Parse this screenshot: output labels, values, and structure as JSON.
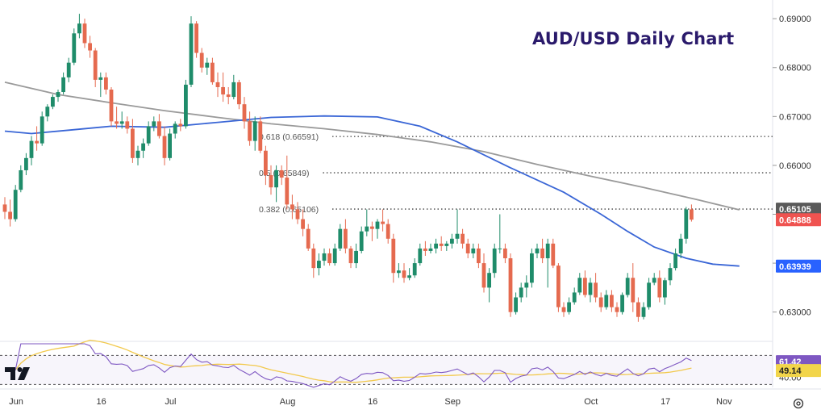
{
  "chart_data": {
    "type": "candlestick",
    "title": "AUD/USD Daily Chart",
    "price_ticks": [
      "0.69000",
      "0.68000",
      "0.67000",
      "0.66000",
      "0.65000",
      "0.64000",
      "0.63000"
    ],
    "date_ticks": [
      "Jun",
      "16",
      "Jul",
      "Aug",
      "16",
      "Sep",
      "Oct",
      "17",
      "Nov"
    ],
    "price_range": [
      0.6245,
      0.6925
    ],
    "fib_levels": [
      {
        "label": "0.618 (0.66591)",
        "value": 0.66591
      },
      {
        "label": "0.5 (0.65849)",
        "value": 0.65849
      },
      {
        "label": "0.382 (0.65106)",
        "value": 0.65106
      }
    ],
    "price_badges": [
      {
        "text": "0.65105",
        "value": 0.65105,
        "color": "#5a5a5a"
      },
      {
        "text": "0.64888",
        "value": 0.64888,
        "color": "#ef5350"
      },
      {
        "text": "0.63939",
        "value": 0.63939,
        "color": "#2962ff"
      }
    ],
    "ma_fast_color": "#3a66d6",
    "ma_slow_color": "#9a9a9a",
    "up_color": "#1f8c6a",
    "down_color": "#e56a4f",
    "ma_fast_anchors": [
      [
        0,
        0.667
      ],
      [
        5,
        0.6665
      ],
      [
        12,
        0.6672
      ],
      [
        20,
        0.668
      ],
      [
        30,
        0.6678
      ],
      [
        40,
        0.6688
      ],
      [
        50,
        0.6698
      ],
      [
        60,
        0.6701
      ],
      [
        70,
        0.6699
      ],
      [
        78,
        0.668
      ],
      [
        85,
        0.6648
      ],
      [
        95,
        0.6595
      ],
      [
        105,
        0.6545
      ],
      [
        112,
        0.65
      ],
      [
        117,
        0.6465
      ],
      [
        122,
        0.6433
      ],
      [
        128,
        0.641
      ],
      [
        133,
        0.6398
      ],
      [
        138,
        0.6394
      ]
    ],
    "ma_slow_anchors": [
      [
        0,
        0.677
      ],
      [
        10,
        0.6745
      ],
      [
        20,
        0.6728
      ],
      [
        30,
        0.6712
      ],
      [
        40,
        0.6698
      ],
      [
        50,
        0.6685
      ],
      [
        60,
        0.6675
      ],
      [
        70,
        0.6663
      ],
      [
        80,
        0.6648
      ],
      [
        90,
        0.6628
      ],
      [
        100,
        0.6602
      ],
      [
        110,
        0.6578
      ],
      [
        120,
        0.6555
      ],
      [
        130,
        0.653
      ],
      [
        138,
        0.6509
      ]
    ],
    "ohlc": [
      [
        0.652,
        0.6535,
        0.649,
        0.6505
      ],
      [
        0.6505,
        0.653,
        0.6475,
        0.649
      ],
      [
        0.649,
        0.656,
        0.6485,
        0.655
      ],
      [
        0.655,
        0.66,
        0.6545,
        0.659
      ],
      [
        0.659,
        0.6625,
        0.658,
        0.6615
      ],
      [
        0.6615,
        0.666,
        0.66,
        0.665
      ],
      [
        0.665,
        0.668,
        0.663,
        0.6645
      ],
      [
        0.6645,
        0.671,
        0.664,
        0.67
      ],
      [
        0.67,
        0.6725,
        0.669,
        0.672
      ],
      [
        0.672,
        0.6745,
        0.6715,
        0.674
      ],
      [
        0.674,
        0.6755,
        0.673,
        0.675
      ],
      [
        0.675,
        0.679,
        0.6745,
        0.678
      ],
      [
        0.678,
        0.682,
        0.677,
        0.681
      ],
      [
        0.681,
        0.688,
        0.6805,
        0.687
      ],
      [
        0.687,
        0.691,
        0.686,
        0.689
      ],
      [
        0.689,
        0.69,
        0.684,
        0.685
      ],
      [
        0.685,
        0.6865,
        0.682,
        0.6835
      ],
      [
        0.6835,
        0.684,
        0.676,
        0.6775
      ],
      [
        0.6775,
        0.679,
        0.674,
        0.678
      ],
      [
        0.678,
        0.679,
        0.6745,
        0.6755
      ],
      [
        0.6755,
        0.676,
        0.668,
        0.669
      ],
      [
        0.669,
        0.672,
        0.6675,
        0.6685
      ],
      [
        0.6685,
        0.671,
        0.6675,
        0.669
      ],
      [
        0.669,
        0.67,
        0.6665,
        0.6675
      ],
      [
        0.6675,
        0.6695,
        0.6605,
        0.6615
      ],
      [
        0.6615,
        0.664,
        0.66,
        0.663
      ],
      [
        0.663,
        0.6655,
        0.6615,
        0.6645
      ],
      [
        0.6645,
        0.669,
        0.664,
        0.668
      ],
      [
        0.668,
        0.67,
        0.667,
        0.669
      ],
      [
        0.669,
        0.6705,
        0.6655,
        0.666
      ],
      [
        0.666,
        0.668,
        0.66,
        0.6615
      ],
      [
        0.6615,
        0.6675,
        0.661,
        0.6665
      ],
      [
        0.6665,
        0.669,
        0.6655,
        0.6685
      ],
      [
        0.6685,
        0.6695,
        0.667,
        0.668
      ],
      [
        0.668,
        0.6775,
        0.6675,
        0.6765
      ],
      [
        0.6765,
        0.6905,
        0.676,
        0.689
      ],
      [
        0.689,
        0.6895,
        0.682,
        0.683
      ],
      [
        0.683,
        0.684,
        0.679,
        0.68
      ],
      [
        0.68,
        0.682,
        0.6785,
        0.681
      ],
      [
        0.681,
        0.682,
        0.6765,
        0.677
      ],
      [
        0.677,
        0.679,
        0.674,
        0.676
      ],
      [
        0.676,
        0.679,
        0.673,
        0.6745
      ],
      [
        0.6745,
        0.676,
        0.6725,
        0.674
      ],
      [
        0.674,
        0.6785,
        0.6735,
        0.677
      ],
      [
        0.677,
        0.6775,
        0.6715,
        0.6725
      ],
      [
        0.6725,
        0.674,
        0.6675,
        0.669
      ],
      [
        0.669,
        0.671,
        0.664,
        0.665
      ],
      [
        0.665,
        0.67,
        0.663,
        0.669
      ],
      [
        0.669,
        0.67,
        0.6625,
        0.663
      ],
      [
        0.663,
        0.664,
        0.656,
        0.658
      ],
      [
        0.658,
        0.66,
        0.654,
        0.6555
      ],
      [
        0.6555,
        0.66,
        0.6525,
        0.659
      ],
      [
        0.659,
        0.66,
        0.656,
        0.6575
      ],
      [
        0.6575,
        0.662,
        0.651,
        0.652
      ],
      [
        0.652,
        0.654,
        0.649,
        0.651
      ],
      [
        0.651,
        0.6525,
        0.648,
        0.649
      ],
      [
        0.649,
        0.651,
        0.6455,
        0.647
      ],
      [
        0.647,
        0.648,
        0.6425,
        0.643
      ],
      [
        0.643,
        0.644,
        0.637,
        0.639
      ],
      [
        0.639,
        0.642,
        0.6375,
        0.6405
      ],
      [
        0.6405,
        0.643,
        0.6395,
        0.642
      ],
      [
        0.642,
        0.643,
        0.6395,
        0.64
      ],
      [
        0.64,
        0.644,
        0.6395,
        0.643
      ],
      [
        0.643,
        0.648,
        0.6425,
        0.647
      ],
      [
        0.647,
        0.649,
        0.642,
        0.643
      ],
      [
        0.643,
        0.6435,
        0.639,
        0.64
      ],
      [
        0.64,
        0.644,
        0.639,
        0.6425
      ],
      [
        0.6425,
        0.6475,
        0.642,
        0.6465
      ],
      [
        0.6465,
        0.651,
        0.6455,
        0.6475
      ],
      [
        0.6475,
        0.6485,
        0.6445,
        0.647
      ],
      [
        0.647,
        0.649,
        0.645,
        0.6485
      ],
      [
        0.6485,
        0.651,
        0.6465,
        0.648
      ],
      [
        0.648,
        0.649,
        0.644,
        0.645
      ],
      [
        0.645,
        0.646,
        0.636,
        0.638
      ],
      [
        0.638,
        0.64,
        0.637,
        0.6385
      ],
      [
        0.6385,
        0.64,
        0.636,
        0.637
      ],
      [
        0.637,
        0.639,
        0.6365,
        0.6375
      ],
      [
        0.6375,
        0.641,
        0.637,
        0.64
      ],
      [
        0.64,
        0.644,
        0.6395,
        0.643
      ],
      [
        0.643,
        0.6445,
        0.6415,
        0.6425
      ],
      [
        0.6425,
        0.644,
        0.642,
        0.643
      ],
      [
        0.643,
        0.645,
        0.642,
        0.644
      ],
      [
        0.644,
        0.6455,
        0.6425,
        0.6435
      ],
      [
        0.6435,
        0.6445,
        0.6425,
        0.644
      ],
      [
        0.644,
        0.646,
        0.643,
        0.645
      ],
      [
        0.645,
        0.651,
        0.644,
        0.646
      ],
      [
        0.646,
        0.647,
        0.643,
        0.644
      ],
      [
        0.644,
        0.645,
        0.641,
        0.642
      ],
      [
        0.642,
        0.644,
        0.641,
        0.643
      ],
      [
        0.643,
        0.644,
        0.639,
        0.64
      ],
      [
        0.64,
        0.642,
        0.634,
        0.635
      ],
      [
        0.635,
        0.639,
        0.632,
        0.638
      ],
      [
        0.638,
        0.644,
        0.637,
        0.643
      ],
      [
        0.643,
        0.65,
        0.642,
        0.643
      ],
      [
        0.643,
        0.644,
        0.64,
        0.641
      ],
      [
        0.641,
        0.642,
        0.629,
        0.63
      ],
      [
        0.63,
        0.634,
        0.6295,
        0.633
      ],
      [
        0.633,
        0.636,
        0.632,
        0.635
      ],
      [
        0.635,
        0.6375,
        0.633,
        0.636
      ],
      [
        0.636,
        0.643,
        0.635,
        0.642
      ],
      [
        0.642,
        0.644,
        0.641,
        0.643
      ],
      [
        0.643,
        0.645,
        0.64,
        0.641
      ],
      [
        0.641,
        0.645,
        0.635,
        0.644
      ],
      [
        0.644,
        0.645,
        0.639,
        0.6395
      ],
      [
        0.6395,
        0.64,
        0.63,
        0.631
      ],
      [
        0.631,
        0.632,
        0.629,
        0.63
      ],
      [
        0.63,
        0.633,
        0.6295,
        0.632
      ],
      [
        0.632,
        0.635,
        0.6315,
        0.634
      ],
      [
        0.634,
        0.638,
        0.6335,
        0.637
      ],
      [
        0.637,
        0.6385,
        0.633,
        0.6335
      ],
      [
        0.6335,
        0.637,
        0.632,
        0.636
      ],
      [
        0.636,
        0.638,
        0.632,
        0.633
      ],
      [
        0.633,
        0.634,
        0.63,
        0.631
      ],
      [
        0.631,
        0.6345,
        0.6305,
        0.6335
      ],
      [
        0.6335,
        0.6345,
        0.63,
        0.631
      ],
      [
        0.631,
        0.632,
        0.629,
        0.63
      ],
      [
        0.63,
        0.634,
        0.6295,
        0.6335
      ],
      [
        0.6335,
        0.638,
        0.633,
        0.637
      ],
      [
        0.637,
        0.64,
        0.63,
        0.632
      ],
      [
        0.632,
        0.633,
        0.628,
        0.629
      ],
      [
        0.629,
        0.632,
        0.6285,
        0.631
      ],
      [
        0.631,
        0.637,
        0.6305,
        0.636
      ],
      [
        0.636,
        0.638,
        0.6355,
        0.637
      ],
      [
        0.637,
        0.6385,
        0.632,
        0.633
      ],
      [
        0.633,
        0.637,
        0.6315,
        0.6365
      ],
      [
        0.6365,
        0.64,
        0.6355,
        0.639
      ],
      [
        0.639,
        0.643,
        0.6385,
        0.642
      ],
      [
        0.642,
        0.646,
        0.641,
        0.645
      ],
      [
        0.645,
        0.6515,
        0.644,
        0.651
      ],
      [
        0.651,
        0.652,
        0.6485,
        0.6489
      ]
    ],
    "rsi": {
      "ticks": [
        "61.42",
        "49.14",
        "40.00"
      ],
      "range": [
        26,
        86
      ],
      "bands": [
        70,
        30
      ],
      "rsi_color": "#7e57c2",
      "signal_color": "#f2c94c",
      "rsi_badge": {
        "text": "61.42",
        "value": 61.42,
        "color": "#7e57c2"
      },
      "signal_badge": {
        "text": "49.14",
        "value": 49.14,
        "color": "#f2d54a"
      },
      "axis_label": {
        "text": "40.00",
        "value": 40
      }
    }
  },
  "icons": {
    "logo": "tradingview-logo-icon",
    "settings": "settings-icon"
  }
}
